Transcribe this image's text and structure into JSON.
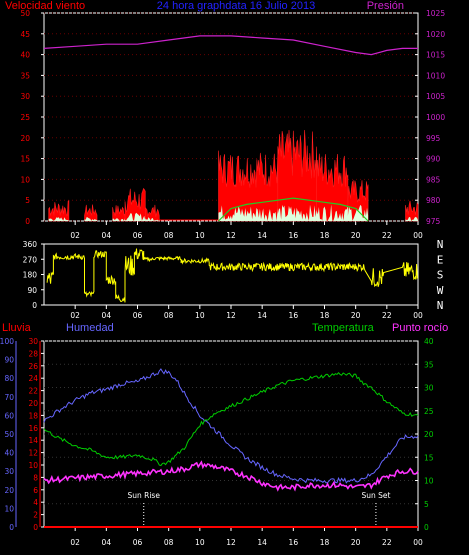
{
  "title": "24 hora graphdata  16 Julio 2013",
  "colors": {
    "background": "#000000",
    "frame": "#ffffff",
    "wind": "#ff0000",
    "gust": "#ff2020",
    "wind_avg": "#22cc22",
    "wind_light": "#ddffdd",
    "pressure": "#cc22cc",
    "direction": "#ffff00",
    "rain": "#ff0000",
    "humidity": "#6666ff",
    "temperature": "#00cc00",
    "dewpoint": "#ff33ff",
    "sun_marker": "#ffffff"
  },
  "x_labels": [
    "02",
    "04",
    "06",
    "08",
    "10",
    "12",
    "14",
    "16",
    "18",
    "20",
    "22",
    "00"
  ],
  "chart_data": [
    {
      "type": "line",
      "name": "wind-pressure",
      "labels": {
        "left": "Velocidad viento",
        "right": "Presión"
      },
      "y_left_ticks": [
        "0",
        "5",
        "10",
        "15",
        "20",
        "25",
        "30",
        "35",
        "40",
        "45",
        "50"
      ],
      "y_right_ticks": [
        "975",
        "980",
        "985",
        "990",
        "995",
        "1000",
        "1005",
        "1010",
        "1015",
        "1020",
        "1025"
      ],
      "ylim_left": [
        0,
        50
      ],
      "ylim_right": [
        975,
        1025
      ],
      "x_hours": [
        0,
        24
      ],
      "series": [
        {
          "key": "pressure",
          "axis": "right",
          "points": [
            [
              0,
              1016.5
            ],
            [
              2,
              1017
            ],
            [
              4,
              1017.5
            ],
            [
              6,
              1017.5
            ],
            [
              8,
              1018.5
            ],
            [
              10,
              1019.5
            ],
            [
              12,
              1019.5
            ],
            [
              14,
              1019
            ],
            [
              16,
              1018.5
            ],
            [
              18,
              1017
            ],
            [
              20,
              1015.5
            ],
            [
              21,
              1015
            ],
            [
              22,
              1016
            ],
            [
              23,
              1016.5
            ],
            [
              24,
              1016.5
            ]
          ]
        },
        {
          "key": "wind_gust",
          "axis": "left",
          "style": "spiky",
          "segments": [
            {
              "from": 0.3,
              "to": 1.6,
              "base": 1,
              "amp": 4
            },
            {
              "from": 2.6,
              "to": 3.4,
              "base": 1,
              "amp": 3
            },
            {
              "from": 4.4,
              "to": 5.2,
              "base": 1,
              "amp": 3
            },
            {
              "from": 5.2,
              "to": 6.5,
              "base": 2,
              "amp": 6
            },
            {
              "from": 6.5,
              "to": 7.4,
              "base": 1,
              "amp": 3
            },
            {
              "from": 11.2,
              "to": 15.0,
              "base": 8,
              "amp": 9
            },
            {
              "from": 15.0,
              "to": 17.5,
              "base": 10,
              "amp": 12
            },
            {
              "from": 17.5,
              "to": 19.5,
              "base": 8,
              "amp": 9
            },
            {
              "from": 19.5,
              "to": 20.8,
              "base": 4,
              "amp": 6
            },
            {
              "from": 23.2,
              "to": 24.0,
              "base": 1,
              "amp": 4
            }
          ]
        },
        {
          "key": "wind_avg",
          "axis": "left",
          "style": "smooth",
          "points": [
            [
              11.2,
              0
            ],
            [
              12,
              3
            ],
            [
              13,
              4
            ],
            [
              14,
              4.5
            ],
            [
              15,
              5
            ],
            [
              16,
              5.5
            ],
            [
              17,
              5
            ],
            [
              18,
              4.5
            ],
            [
              19,
              4
            ],
            [
              20,
              3
            ],
            [
              20.8,
              0
            ]
          ]
        }
      ]
    },
    {
      "type": "scatter",
      "name": "wind-direction",
      "y_ticks": [
        "0",
        "90",
        "180",
        "270",
        "360"
      ],
      "ylim": [
        0,
        360
      ],
      "compass_labels": [
        "N",
        "W",
        "S",
        "E",
        "N"
      ],
      "series": [
        {
          "key": "direction",
          "segments": [
            {
              "from": 0.2,
              "to": 0.6,
              "center": 150,
              "spread": 120
            },
            {
              "from": 0.6,
              "to": 2.6,
              "center": 285,
              "spread": 35
            },
            {
              "from": 2.6,
              "to": 3.2,
              "center": 60,
              "spread": 40
            },
            {
              "from": 3.2,
              "to": 4.0,
              "center": 300,
              "spread": 40
            },
            {
              "from": 4.0,
              "to": 4.6,
              "center": 150,
              "spread": 60
            },
            {
              "from": 4.6,
              "to": 5.2,
              "center": 40,
              "spread": 50
            },
            {
              "from": 5.2,
              "to": 5.8,
              "center": 230,
              "spread": 130
            },
            {
              "from": 5.8,
              "to": 6.4,
              "center": 300,
              "spread": 80
            },
            {
              "from": 6.4,
              "to": 7.0,
              "center": 270,
              "spread": 20
            },
            {
              "from": 7.0,
              "to": 8.8,
              "center": 275,
              "spread": 20
            },
            {
              "from": 8.8,
              "to": 10.6,
              "center": 260,
              "spread": 25
            },
            {
              "from": 10.6,
              "to": 20.6,
              "center": 225,
              "spread": 45
            },
            {
              "from": 21.0,
              "to": 21.8,
              "center": 160,
              "spread": 120
            },
            {
              "from": 23.0,
              "to": 24.0,
              "center": 200,
              "spread": 110
            }
          ]
        }
      ]
    },
    {
      "type": "line",
      "name": "humidity-temperature",
      "labels": {
        "rain": "Lluvia",
        "humidity": "Humedad",
        "temperature": "Temperatura",
        "dewpoint": "Punto rocío"
      },
      "y_humidity_ticks": [
        "0",
        "10",
        "20",
        "30",
        "40",
        "50",
        "60",
        "70",
        "80",
        "90",
        "100"
      ],
      "y_rain_ticks": [
        "0",
        "2",
        "4",
        "6",
        "8",
        "10",
        "12",
        "14",
        "16",
        "18",
        "20",
        "22",
        "24",
        "26",
        "28",
        "30"
      ],
      "y_temp_ticks": [
        "0",
        "5",
        "10",
        "15",
        "20",
        "25",
        "30",
        "35",
        "40"
      ],
      "ylim_humidity": [
        0,
        100
      ],
      "ylim_rain": [
        0,
        30
      ],
      "ylim_temp": [
        0,
        40
      ],
      "annotations": [
        {
          "text": "Sun Rise",
          "hour": 6.4
        },
        {
          "text": "Sun Set",
          "hour": 21.3
        }
      ],
      "series": [
        {
          "key": "humidity",
          "axis": "humidity",
          "points": [
            [
              0,
              57
            ],
            [
              1,
              63
            ],
            [
              2,
              68
            ],
            [
              3,
              72
            ],
            [
              4,
              74
            ],
            [
              5,
              77
            ],
            [
              6,
              78
            ],
            [
              7,
              82
            ],
            [
              7.5,
              84
            ],
            [
              8,
              83
            ],
            [
              8.5,
              79
            ],
            [
              9,
              72
            ],
            [
              9.5,
              66
            ],
            [
              10,
              60
            ],
            [
              11,
              52
            ],
            [
              12,
              44
            ],
            [
              13,
              37
            ],
            [
              14,
              32
            ],
            [
              15,
              28
            ],
            [
              16,
              26
            ],
            [
              17,
              25
            ],
            [
              18,
              25
            ],
            [
              19,
              25
            ],
            [
              20,
              25
            ],
            [
              21,
              28
            ],
            [
              22,
              38
            ],
            [
              23,
              48
            ],
            [
              24,
              49
            ]
          ]
        },
        {
          "key": "temperature",
          "axis": "temp",
          "points": [
            [
              0,
              21
            ],
            [
              1,
              19
            ],
            [
              2,
              17.5
            ],
            [
              3,
              16.5
            ],
            [
              4,
              15
            ],
            [
              5,
              15
            ],
            [
              6,
              15.5
            ],
            [
              7,
              14.5
            ],
            [
              7.5,
              13.5
            ],
            [
              8,
              14
            ],
            [
              9,
              17
            ],
            [
              10,
              22
            ],
            [
              11,
              24.5
            ],
            [
              12,
              26
            ],
            [
              13,
              27.5
            ],
            [
              14,
              29
            ],
            [
              15,
              30.5
            ],
            [
              16,
              31.5
            ],
            [
              17,
              32
            ],
            [
              18,
              32.5
            ],
            [
              19,
              33
            ],
            [
              20,
              32.5
            ],
            [
              20.5,
              31
            ],
            [
              21,
              30
            ],
            [
              22,
              27
            ],
            [
              23,
              24.5
            ],
            [
              24,
              24
            ]
          ]
        },
        {
          "key": "dewpoint",
          "axis": "temp",
          "points": [
            [
              0,
              10
            ],
            [
              2,
              10.5
            ],
            [
              4,
              11
            ],
            [
              6,
              11.5
            ],
            [
              8,
              12
            ],
            [
              9,
              12.5
            ],
            [
              10,
              13.5
            ],
            [
              11,
              13
            ],
            [
              12,
              12
            ],
            [
              13,
              11
            ],
            [
              14,
              9.5
            ],
            [
              15,
              8.5
            ],
            [
              16,
              8.5
            ],
            [
              17,
              9
            ],
            [
              18,
              9
            ],
            [
              19,
              9
            ],
            [
              20,
              8.5
            ],
            [
              21,
              9
            ],
            [
              22,
              11
            ],
            [
              23,
              12
            ],
            [
              24,
              12
            ]
          ]
        },
        {
          "key": "rain",
          "axis": "rain",
          "points": [
            [
              0,
              0
            ],
            [
              24,
              0
            ]
          ]
        }
      ]
    }
  ]
}
